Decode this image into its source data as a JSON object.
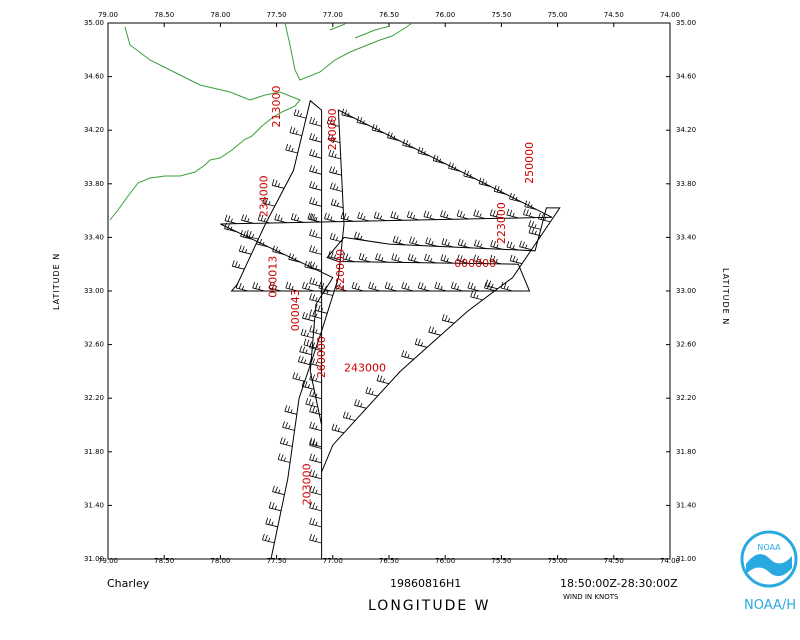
{
  "map": {
    "storm_name": "Charley",
    "mission_id": "19860816H1",
    "time_range": "18:50:00Z-28:30:00Z",
    "units_note": "WIND IN KNOTS",
    "x_axis_title": "LONGITUDE   W",
    "y_axis_title_left": "LATITUDE   N",
    "y_axis_title_right": "LATITUDE   N",
    "logo_text": "NOAA/H",
    "logo_inner": "NOAA",
    "colors": {
      "coast": "#3aa03a",
      "time_labels": "#cc0000",
      "track": "#000000",
      "logo": "#2aa9e0"
    },
    "lon_ticks": [
      "79.00",
      "78.50",
      "78.00",
      "77.50",
      "77.00",
      "76.50",
      "76.00",
      "75.50",
      "75.00",
      "74.50",
      "74.00"
    ],
    "lat_ticks": [
      "35.00",
      "34.60",
      "34.20",
      "33.80",
      "33.40",
      "33.00",
      "32.60",
      "32.20",
      "31.80",
      "31.40",
      "31.00"
    ],
    "lon_range": [
      79.0,
      74.0
    ],
    "lat_range": [
      31.0,
      35.0
    ]
  },
  "chart_data": {
    "type": "scatter",
    "title": "",
    "xlabel": "LONGITUDE   W",
    "ylabel": "LATITUDE   N",
    "xlim": [
      79.0,
      74.0
    ],
    "ylim": [
      31.0,
      35.0
    ],
    "time_labels": [
      {
        "text": "213000",
        "lon": 77.47,
        "lat": 34.22,
        "rotate": -90
      },
      {
        "text": "240000",
        "lon": 76.97,
        "lat": 34.05,
        "rotate": -90
      },
      {
        "text": "234000",
        "lon": 77.58,
        "lat": 33.55,
        "rotate": -90
      },
      {
        "text": "220000",
        "lon": 76.9,
        "lat": 33.0,
        "rotate": -90
      },
      {
        "text": "250000",
        "lon": 75.22,
        "lat": 33.8,
        "rotate": -90
      },
      {
        "text": "223000",
        "lon": 75.47,
        "lat": 33.35,
        "rotate": -90
      },
      {
        "text": "000000",
        "lon": 75.92,
        "lat": 33.18,
        "rotate": 0
      },
      {
        "text": "260000",
        "lon": 77.07,
        "lat": 32.35,
        "rotate": -90
      },
      {
        "text": "000043",
        "lon": 77.3,
        "lat": 32.7,
        "rotate": -90
      },
      {
        "text": "000013",
        "lon": 77.5,
        "lat": 32.95,
        "rotate": -90
      },
      {
        "text": "243000",
        "lon": 76.9,
        "lat": 32.4,
        "rotate": 0
      },
      {
        "text": "203000",
        "lon": 77.2,
        "lat": 31.4,
        "rotate": -90
      }
    ],
    "track": [
      [
        77.1,
        31.0
      ],
      [
        77.1,
        34.35
      ],
      [
        77.2,
        34.42
      ],
      [
        77.35,
        33.9
      ],
      [
        77.6,
        33.5
      ],
      [
        77.85,
        33.05
      ],
      [
        77.9,
        33.0
      ],
      [
        75.25,
        33.0
      ],
      [
        75.35,
        33.2
      ],
      [
        76.95,
        33.22
      ],
      [
        77.05,
        33.25
      ],
      [
        76.9,
        33.4
      ],
      [
        76.5,
        33.35
      ],
      [
        75.2,
        33.3
      ],
      [
        75.1,
        33.62
      ],
      [
        74.98,
        33.62
      ],
      [
        75.4,
        33.1
      ],
      [
        75.8,
        32.85
      ],
      [
        76.4,
        32.4
      ],
      [
        77.0,
        31.85
      ],
      [
        77.1,
        31.65
      ],
      [
        77.1,
        32.0
      ],
      [
        77.2,
        32.4
      ],
      [
        77.15,
        32.9
      ],
      [
        77.0,
        33.1
      ],
      [
        78.0,
        33.5
      ],
      [
        75.05,
        33.55
      ],
      [
        76.95,
        34.35
      ],
      [
        76.9,
        33.5
      ],
      [
        76.95,
        33.1
      ],
      [
        77.1,
        32.7
      ],
      [
        77.3,
        32.2
      ],
      [
        77.4,
        31.6
      ],
      [
        77.55,
        31.0
      ]
    ]
  }
}
